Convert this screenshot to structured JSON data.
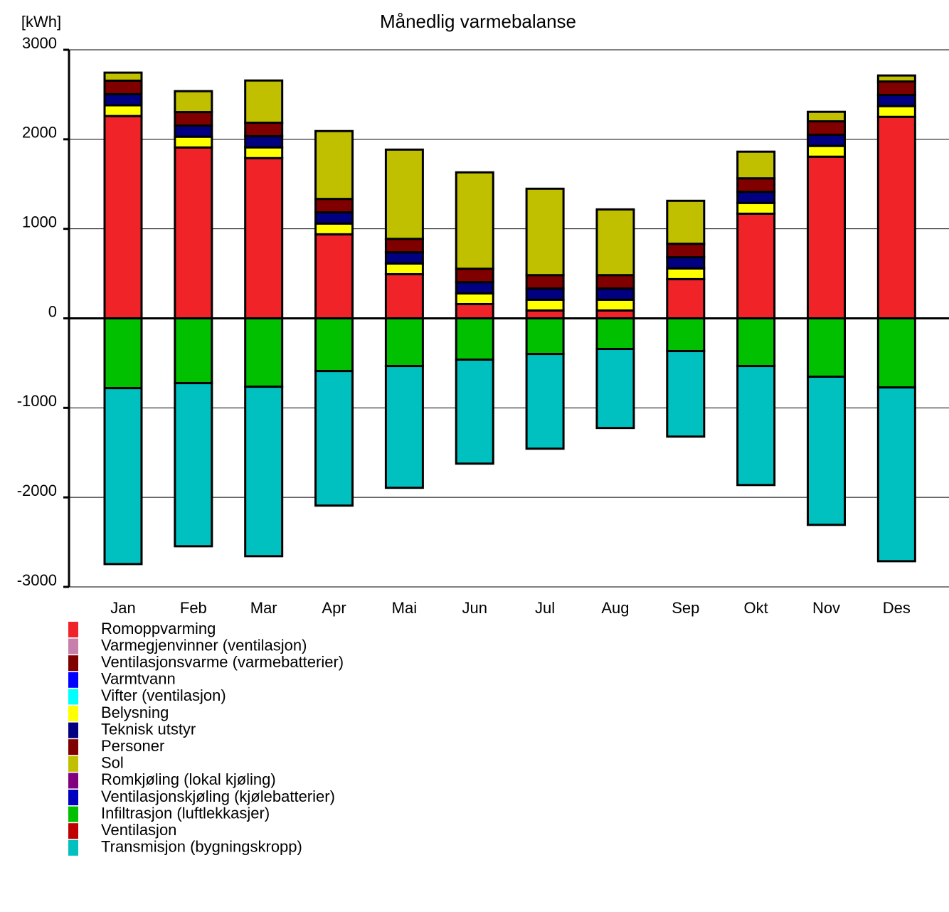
{
  "chart_data": {
    "type": "stacked-bar",
    "title": "Månedlig varmebalanse",
    "y_label": "[kWh]",
    "categories": [
      "Jan",
      "Feb",
      "Mar",
      "Apr",
      "Mai",
      "Jun",
      "Jul",
      "Aug",
      "Sep",
      "Okt",
      "Nov",
      "Des"
    ],
    "ylim": [
      -3000,
      3000
    ],
    "yticks": [
      -3000,
      -2000,
      -1000,
      0,
      1000,
      2000,
      3000
    ],
    "grid": true,
    "series": [
      {
        "name": "Romoppvarming",
        "color": "#f02329",
        "values": [
          2260,
          1909,
          1790,
          939,
          493,
          159,
          88,
          88,
          438,
          1169,
          1806,
          2251
        ]
      },
      {
        "name": "Varmegjenvinner (ventilasjon)",
        "color": "#c77fab",
        "values": [
          0,
          0,
          0,
          0,
          0,
          0,
          0,
          0,
          0,
          0,
          0,
          0
        ]
      },
      {
        "name": "Ventilasjonsvarme (varmebatterier)",
        "color": "#800000",
        "values": [
          0,
          0,
          0,
          0,
          0,
          0,
          0,
          0,
          0,
          0,
          0,
          0
        ]
      },
      {
        "name": "Varmtvann",
        "color": "#0000ff",
        "values": [
          0,
          0,
          0,
          0,
          0,
          0,
          0,
          0,
          0,
          0,
          0,
          0
        ]
      },
      {
        "name": "Vifter (ventilasjon)",
        "color": "#00ffff",
        "values": [
          0,
          0,
          0,
          0,
          0,
          0,
          0,
          0,
          0,
          0,
          0,
          0
        ]
      },
      {
        "name": "Belysning",
        "color": "#ffff00",
        "values": [
          120,
          120,
          120,
          120,
          120,
          120,
          120,
          120,
          120,
          120,
          120,
          120
        ]
      },
      {
        "name": "Teknisk utstyr",
        "color": "#000080",
        "values": [
          125,
          125,
          125,
          125,
          125,
          125,
          125,
          125,
          125,
          125,
          125,
          125
        ]
      },
      {
        "name": "Personer",
        "color": "#800000",
        "values": [
          150,
          150,
          150,
          150,
          150,
          150,
          150,
          150,
          150,
          150,
          150,
          150
        ]
      },
      {
        "name": "Sol",
        "color": "#c0c000",
        "values": [
          90,
          234,
          472,
          758,
          997,
          1077,
          965,
          734,
          480,
          298,
          106,
          67
        ]
      },
      {
        "name": "Romkjøling (lokal kjøling)",
        "color": "#800080",
        "values": [
          0,
          0,
          0,
          0,
          0,
          0,
          0,
          0,
          0,
          0,
          0,
          0
        ]
      },
      {
        "name": "Ventilasjonskjøling (kjølebatterier)",
        "color": "#0000c0",
        "values": [
          0,
          0,
          0,
          0,
          0,
          0,
          0,
          0,
          0,
          0,
          0,
          0
        ]
      },
      {
        "name": "Infiltrasjon (luftlekkasjer)",
        "color": "#00c000",
        "values": [
          -780,
          -724,
          -764,
          -589,
          -533,
          -461,
          -398,
          -342,
          -366,
          -533,
          -652,
          -772
        ]
      },
      {
        "name": "Ventilasjon",
        "color": "#c00000",
        "values": [
          0,
          0,
          0,
          0,
          0,
          0,
          0,
          0,
          0,
          0,
          0,
          0
        ]
      },
      {
        "name": "Transmisjon (bygningskropp)",
        "color": "#00c0c0",
        "values": [
          -1965,
          -1822,
          -1893,
          -1503,
          -1360,
          -1162,
          -1058,
          -883,
          -955,
          -1329,
          -1655,
          -1941
        ]
      }
    ]
  }
}
